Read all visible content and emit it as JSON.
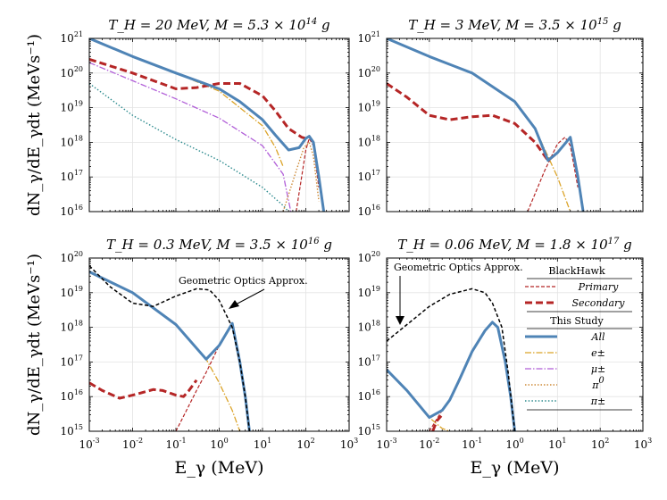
{
  "chart_data": {
    "type": "line",
    "x_scale": "log",
    "y_scale": "log",
    "xlabel": "E_γ (MeV)",
    "ylabel": "dN_γ/dE_γdt (MeVs⁻¹)",
    "panels": [
      {
        "title": "T_H = 20 MeV, M = 5.3 × 10^14 g",
        "xlim": [
          0.001,
          1000
        ],
        "ylim": [
          1e+16,
          1e+21
        ],
        "series": [
          {
            "name": "All",
            "style": "all",
            "x": [
              0.001,
              0.01,
              0.1,
              1,
              3,
              10,
              20,
              40,
              70,
              100,
              120,
              150,
              200,
              260
            ],
            "y": [
              1e+21,
              3e+20,
              1e+20,
              3.5e+19,
              1.5e+19,
              4.5e+18,
              1.6e+18,
              6e+17,
              7e+17,
              1.3e+18,
              1.5e+18,
              1e+18,
              1e+17,
              1e+16
            ]
          },
          {
            "name": "e±",
            "style": "e",
            "x": [
              0.001,
              0.01,
              0.1,
              1,
              10,
              20,
              30
            ],
            "y": [
              1e+21,
              3e+20,
              1e+20,
              3e+19,
              3e+18,
              7e+17,
              2e+17
            ]
          },
          {
            "name": "μ±",
            "style": "mu",
            "x": [
              0.001,
              0.01,
              0.1,
              1,
              10,
              30,
              45
            ],
            "y": [
              2e+20,
              6e+19,
              1.8e+19,
              5e+18,
              8e+17,
              1.2e+17,
              1e+16
            ]
          },
          {
            "name": "π0",
            "style": "pi0",
            "x": [
              30,
              60,
              90,
              120,
              150,
              200
            ],
            "y": [
              1e+16,
              1.5e+17,
              7e+17,
              1e+18,
              4e+17,
              2e+16
            ]
          },
          {
            "name": "π±",
            "style": "pipm",
            "x": [
              0.001,
              0.01,
              0.1,
              1,
              10,
              30,
              40
            ],
            "y": [
              5e+19,
              6e+18,
              1.2e+18,
              3e+17,
              5e+16,
              1.5e+16,
              1e+16
            ]
          },
          {
            "name": "Primary",
            "style": "primary",
            "x": [
              60,
              80,
              100,
              120,
              150,
              200
            ],
            "y": [
              1e+16,
              1e+17,
              6e+17,
              1.3e+18,
              8e+17,
              5e+16
            ]
          },
          {
            "name": "Secondary",
            "style": "secondary",
            "x": [
              0.001,
              0.01,
              0.1,
              0.3,
              1,
              3,
              10,
              20,
              40,
              60,
              80,
              100
            ],
            "y": [
              2.5e+20,
              1e+20,
              3.5e+19,
              3.8e+19,
              5e+19,
              5e+19,
              2.2e+19,
              8e+18,
              2.5e+18,
              1.8e+18,
              1.4e+18,
              1.3e+18
            ]
          }
        ]
      },
      {
        "title": "T_H = 3 MeV, M = 3.5 × 10^15 g",
        "xlim": [
          0.001,
          1000
        ],
        "ylim": [
          1e+16,
          1e+21
        ],
        "series": [
          {
            "name": "All",
            "style": "all",
            "x": [
              0.001,
              0.01,
              0.1,
              1,
              3,
              6,
              10,
              20,
              30,
              40
            ],
            "y": [
              1e+21,
              3e+20,
              1e+20,
              1.5e+19,
              2.5e+18,
              3e+17,
              5e+17,
              1.4e+18,
              1e+17,
              1e+16
            ]
          },
          {
            "name": "e±",
            "style": "e",
            "x": [
              0.001,
              0.01,
              0.1,
              1,
              3,
              10,
              20
            ],
            "y": [
              1e+21,
              3e+20,
              1e+20,
              1.5e+19,
              2.5e+18,
              1e+17,
              1e+16
            ]
          },
          {
            "name": "Primary",
            "style": "primary",
            "x": [
              2,
              5,
              10,
              15,
              20,
              30
            ],
            "y": [
              1e+16,
              1.5e+17,
              9e+17,
              1.4e+18,
              8e+17,
              5e+16
            ]
          },
          {
            "name": "Secondary",
            "style": "secondary",
            "x": [
              0.001,
              0.003,
              0.01,
              0.03,
              0.1,
              0.3,
              1,
              3,
              6,
              10
            ],
            "y": [
              5e+19,
              2e+19,
              6e+18,
              4.5e+18,
              5.5e+18,
              6e+18,
              3.5e+18,
              1e+18,
              3e+17,
              5e+17
            ]
          }
        ]
      },
      {
        "title": "T_H = 0.3 MeV, M = 3.5 × 10^16 g",
        "xlim": [
          0.001,
          1000
        ],
        "ylim": [
          1000000000000000.0,
          1e+20
        ],
        "series": [
          {
            "name": "All",
            "style": "all",
            "x": [
              0.001,
              0.01,
              0.1,
              0.5,
              1,
              2,
              3,
              4,
              5
            ],
            "y": [
              4e+19,
              1e+19,
              1.2e+18,
              1.2e+17,
              3e+17,
              1.3e+18,
              1e+17,
              1e+16,
              1000000000000000.0
            ]
          },
          {
            "name": "e±",
            "style": "e",
            "x": [
              0.001,
              0.01,
              0.1,
              0.5,
              1,
              2,
              3
            ],
            "y": [
              4e+19,
              1e+19,
              1.2e+18,
              1.2e+17,
              2.5e+16,
              4000000000000000.0,
              1000000000000000.0
            ]
          },
          {
            "name": "Primary",
            "style": "primary",
            "x": [
              0.1,
              0.3,
              0.5,
              1,
              2,
              3,
              4,
              5
            ],
            "y": [
              1000000000000000.0,
              1.5e+16,
              5e+16,
              3e+17,
              1.3e+18,
              1e+17,
              1e+16,
              1000000000000000.0
            ]
          },
          {
            "name": "Secondary",
            "style": "secondary",
            "x": [
              0.001,
              0.002,
              0.005,
              0.01,
              0.03,
              0.05,
              0.1,
              0.15,
              0.2,
              0.3
            ],
            "y": [
              2.5e+16,
              1.5e+16,
              9000000000000000.0,
              1.1e+16,
              1.6e+16,
              1.5e+16,
              1.1e+16,
              1e+16,
              1.5e+16,
              3e+16
            ]
          },
          {
            "name": "Geometric Optics Approx.",
            "style": "geo",
            "x": [
              0.001,
              0.003,
              0.01,
              0.03,
              0.1,
              0.3,
              0.6,
              1,
              2,
              3,
              4,
              5
            ],
            "y": [
              6e+19,
              1.5e+19,
              5e+18,
              4e+18,
              8e+18,
              1.3e+19,
              1.2e+19,
              6e+18,
              1e+18,
              1e+17,
              1e+16,
              1000000000000000.0
            ]
          }
        ]
      },
      {
        "title": "T_H = 0.06 MeV, M = 1.8 × 10^17 g",
        "xlim": [
          0.001,
          1000
        ],
        "ylim": [
          1000000000000000.0,
          1e+20
        ],
        "series": [
          {
            "name": "All",
            "style": "all",
            "x": [
              0.001,
              0.003,
              0.01,
              0.02,
              0.03,
              0.05,
              0.1,
              0.2,
              0.3,
              0.4,
              0.6,
              0.8,
              1
            ],
            "y": [
              6e+16,
              1.5e+16,
              2500000000000000.0,
              4000000000000000.0,
              8000000000000000.0,
              3e+16,
              2e+17,
              8e+17,
              1.4e+18,
              1e+18,
              1e+17,
              1e+16,
              1000000000000000.0
            ]
          },
          {
            "name": "e±",
            "style": "e",
            "x": [
              0.001,
              0.003,
              0.01,
              0.02,
              0.03
            ],
            "y": [
              6e+16,
              1.5e+16,
              2500000000000000.0,
              1200000000000000.0,
              1000000000000000.0
            ]
          },
          {
            "name": "Primary",
            "style": "primary",
            "x": [
              0.01,
              0.02,
              0.03,
              0.05,
              0.1,
              0.2,
              0.3,
              0.4,
              0.6,
              0.8,
              1
            ],
            "y": [
              1000000000000000.0,
              4000000000000000.0,
              8000000000000000.0,
              3e+16,
              2e+17,
              8e+17,
              1.4e+18,
              1e+18,
              1e+17,
              1e+16,
              1000000000000000.0
            ]
          },
          {
            "name": "Secondary",
            "style": "secondary",
            "x": [
              0.012,
              0.015,
              0.02
            ],
            "y": [
              1000000000000000.0,
              2000000000000000.0,
              3000000000000000.0
            ]
          },
          {
            "name": "Geometric Optics Approx.",
            "style": "geo",
            "x": [
              0.001,
              0.003,
              0.01,
              0.03,
              0.1,
              0.2,
              0.3,
              0.5,
              0.7,
              1
            ],
            "y": [
              4e+17,
              1.2e+18,
              4e+18,
              9e+18,
              1.3e+19,
              1e+19,
              5e+18,
              1e+18,
              5e+16,
              1000000000000000.0
            ]
          }
        ]
      }
    ],
    "legend": {
      "location": "lower-right panel, right side",
      "groups": [
        {
          "header": "BlackHawk",
          "entries": [
            {
              "label": "Primary",
              "style": "primary"
            },
            {
              "label": "Secondary",
              "style": "secondary"
            }
          ]
        },
        {
          "header": "This Study",
          "entries": [
            {
              "label": "All",
              "style": "all"
            },
            {
              "label": "e±",
              "style": "e"
            },
            {
              "label": "μ±",
              "style": "mu"
            },
            {
              "label": "π0",
              "style": "pi0"
            },
            {
              "label": "π±",
              "style": "pipm"
            }
          ]
        }
      ]
    },
    "annotations": [
      {
        "panel": 2,
        "text": "Geometric Optics Approx."
      },
      {
        "panel": 3,
        "text": "Geometric Optics Approx."
      }
    ],
    "colors": {
      "all": "#4f84b6",
      "e": "#dba328",
      "mu": "#b15fd8",
      "pi0": "#cd8a36",
      "pipm": "#2d8b8e",
      "primary": "#b52626",
      "secondary": "#b52626",
      "geo": "#000000",
      "grid": "#e3e3e3"
    }
  }
}
